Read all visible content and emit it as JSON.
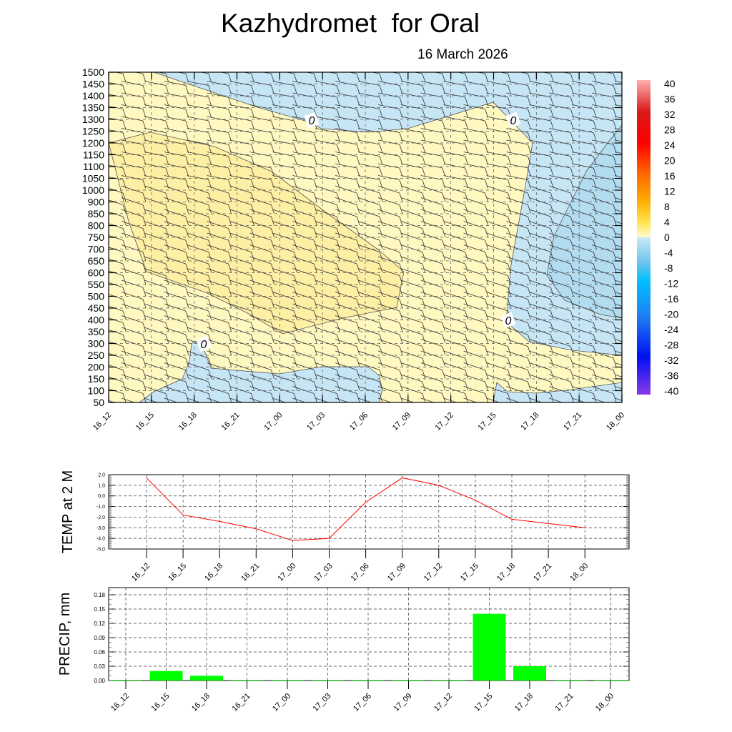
{
  "title": "Kazhydromet  for Oral",
  "date": "16 March 2026",
  "chart_data": [
    {
      "type": "heatmap",
      "name": "temperature-wind cross-section",
      "ylabels": [
        "1500",
        "1450",
        "1400",
        "1350",
        "1300",
        "1250",
        "1200",
        "1150",
        "1100",
        "1050",
        "1000",
        "900",
        "850",
        "800",
        "750",
        "700",
        "650",
        "600",
        "550",
        "500",
        "450",
        "400",
        "350",
        "300",
        "250",
        "200",
        "150",
        "100",
        "50"
      ],
      "xlabels": [
        "16_12",
        "16_15",
        "16_18",
        "16_21",
        "17_00",
        "17_03",
        "17_06",
        "17_09",
        "17_12",
        "17_15",
        "17_18",
        "17_21",
        "18_00"
      ],
      "contour_labels": [
        "0",
        "0",
        "0",
        "0"
      ],
      "colorbar": {
        "labels": [
          "40",
          "36",
          "32",
          "28",
          "24",
          "20",
          "16",
          "12",
          "8",
          "4",
          "0",
          "-4",
          "-8",
          "-12",
          "-16",
          "-20",
          "-24",
          "-28",
          "-32",
          "-36",
          "-40"
        ],
        "range": [
          -40,
          40
        ]
      },
      "colors": {
        "warm_light": "#fff8c0",
        "warm_mid": "#fdefa4",
        "cold_light": "#c6e5f5",
        "cold_mid": "#b3dcf1"
      }
    },
    {
      "type": "line",
      "ylabel": "TEMP at 2 M",
      "categories": [
        "16_12",
        "16_15",
        "16_18",
        "16_21",
        "17_00",
        "17_03",
        "17_06",
        "17_09",
        "17_12",
        "17_15",
        "17_18",
        "17_21",
        "18_00"
      ],
      "values": [
        1.7,
        -1.8,
        -2.4,
        -3.1,
        -4.2,
        -4.0,
        -0.6,
        1.7,
        1.0,
        -0.4,
        -2.2,
        -2.6,
        -3.0
      ],
      "yticks": [
        "2.0",
        "1.0",
        "0.0",
        "-1.0",
        "-2.0",
        "-3.0",
        "-4.0",
        "-5.0"
      ],
      "ylim": [
        -5,
        2
      ],
      "color": "#ff0000",
      "grid": true
    },
    {
      "type": "bar",
      "ylabel": "PRECIP, mm",
      "categories": [
        "16_12",
        "16_15",
        "16_18",
        "16_21",
        "17_00",
        "17_03",
        "17_06",
        "17_09",
        "17_12",
        "17_15",
        "17_18",
        "17_21",
        "18_00"
      ],
      "values": [
        0,
        0.02,
        0.01,
        0,
        0,
        0,
        0,
        0,
        0,
        0.14,
        0.03,
        0,
        0
      ],
      "yticks": [
        "0.18",
        "0.15",
        "0.12",
        "0.09",
        "0.06",
        "0.03",
        "0.00"
      ],
      "ylim": [
        0,
        0.2
      ],
      "color": "#00ff00",
      "grid": true
    }
  ]
}
